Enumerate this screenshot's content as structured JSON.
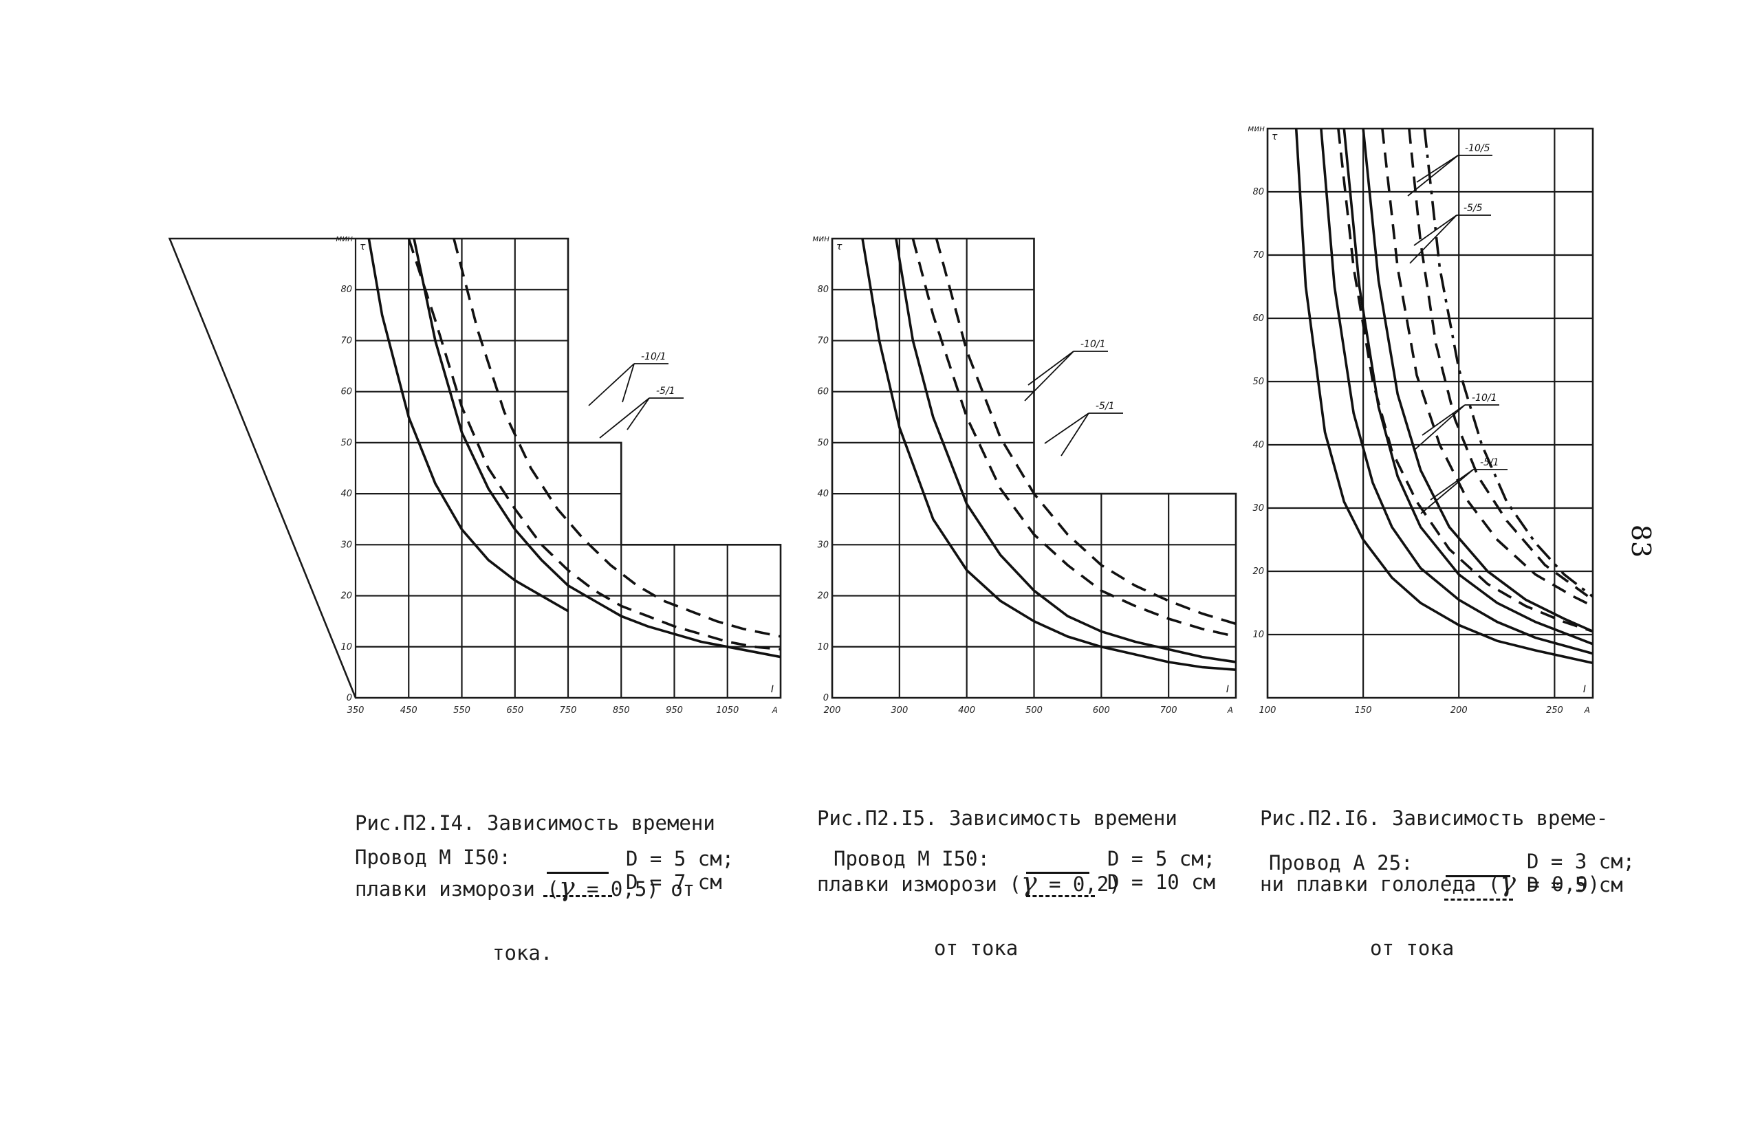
{
  "figures": [
    {
      "caption": [
        "Рис.П2.I4. Зависимость времени",
        "плавки изморози (",
        " = 0,5) от",
        "тока."
      ],
      "gamma_symbol": "γ",
      "wire_label": "Провод М I50:",
      "legend": [
        {
          "style": "solid",
          "label": "D = 5 см;"
        },
        {
          "style": "dashed",
          "label": "D = 7 см"
        }
      ]
    },
    {
      "caption": [
        "Рис.П2.I5. Зависимость времени",
        "плавки изморози (",
        " = 0,2)",
        "от тока"
      ],
      "gamma_symbol": "γ",
      "wire_label": "Провод М I50:",
      "legend": [
        {
          "style": "solid",
          "label": "D = 5 см;"
        },
        {
          "style": "dashed",
          "label": "D = 10 см"
        }
      ]
    },
    {
      "caption": [
        "Рис.П2.I6. Зависимость време-",
        "ни плавки гололеда (",
        " = 0,9)",
        "от тока"
      ],
      "gamma_symbol": "γ",
      "wire_label": "Провод А 25:",
      "legend": [
        {
          "style": "solid",
          "label": "D = 3 см;"
        },
        {
          "style": "dashed",
          "label": "D = 5 см"
        }
      ]
    }
  ],
  "page_number": "83",
  "chart_data": [
    {
      "type": "line",
      "xlabel": "I",
      "x_unit": "A",
      "ylabel": "τ",
      "y_unit": "мин",
      "x_ticks": [
        "350",
        "450",
        "550",
        "650",
        "750",
        "850",
        "950",
        "1050"
      ],
      "y_ticks": [
        "0",
        "10",
        "20",
        "30",
        "40",
        "50",
        "60",
        "70",
        "80"
      ],
      "xlim": [
        350,
        1150
      ],
      "ylim": [
        0,
        90
      ],
      "grid": true,
      "series": [
        {
          "style": "solid",
          "x": [
            375,
            400,
            450,
            500,
            550,
            600,
            650,
            700,
            750
          ],
          "y": [
            90,
            75,
            55,
            42,
            33,
            27,
            23,
            20,
            17
          ]
        },
        {
          "style": "solid",
          "x": [
            460,
            500,
            550,
            600,
            650,
            700,
            750,
            800,
            850,
            900,
            950,
            1000,
            1050,
            1100,
            1150
          ],
          "y": [
            90,
            70,
            52,
            41,
            33,
            27,
            22,
            19,
            16,
            14,
            12.5,
            11,
            10,
            9,
            8
          ]
        },
        {
          "style": "dashed",
          "x": [
            450,
            500,
            550,
            600,
            650,
            700,
            750,
            800,
            850,
            900,
            950,
            1000,
            1050,
            1100,
            1150
          ],
          "y": [
            90,
            74,
            57,
            45,
            37,
            30,
            25,
            21,
            18,
            16,
            14,
            12.5,
            11,
            10,
            9.5
          ]
        },
        {
          "style": "dashed",
          "x": [
            535,
            580,
            630,
            680,
            730,
            780,
            830,
            880,
            930,
            980,
            1030,
            1080,
            1150
          ],
          "y": [
            90,
            72,
            56,
            45,
            37,
            31,
            26,
            22,
            19,
            17,
            15,
            13.5,
            12
          ]
        }
      ],
      "annotations": [
        {
          "label": "-10/1",
          "target_series": [
            1,
            2
          ]
        },
        {
          "label": "-5/1",
          "target_series": [
            0,
            2
          ]
        }
      ]
    },
    {
      "type": "line",
      "xlabel": "I",
      "x_unit": "A",
      "ylabel": "τ",
      "y_unit": "мин",
      "x_ticks": [
        "200",
        "300",
        "400",
        "500",
        "600",
        "700"
      ],
      "y_ticks": [
        "0",
        "10",
        "20",
        "30",
        "40",
        "50",
        "60",
        "70",
        "80"
      ],
      "xlim": [
        200,
        800
      ],
      "ylim": [
        0,
        90
      ],
      "grid": true,
      "series": [
        {
          "style": "solid",
          "x": [
            245,
            270,
            300,
            350,
            400,
            450,
            500,
            550,
            600,
            650,
            700,
            750,
            800
          ],
          "y": [
            90,
            70,
            53,
            35,
            25,
            19,
            15,
            12,
            10,
            8.5,
            7,
            6,
            5.5
          ]
        },
        {
          "style": "solid",
          "x": [
            295,
            320,
            350,
            400,
            450,
            500,
            550,
            600,
            650,
            700,
            750,
            800
          ],
          "y": [
            90,
            70,
            55,
            38,
            28,
            21,
            16,
            13,
            11,
            9.5,
            8,
            7
          ]
        },
        {
          "style": "dashed",
          "x": [
            320,
            350,
            400,
            450,
            500,
            550,
            600,
            650,
            700,
            750,
            800
          ],
          "y": [
            90,
            75,
            55,
            41,
            32,
            26,
            21,
            18,
            15.5,
            13.5,
            12
          ]
        },
        {
          "style": "dashed",
          "x": [
            355,
            400,
            450,
            500,
            550,
            600,
            650,
            700,
            750,
            800
          ],
          "y": [
            90,
            68,
            51,
            40,
            32,
            26,
            22,
            19,
            16.5,
            14.5
          ]
        }
      ],
      "annotations": [
        {
          "label": "-10/1",
          "target_series": [
            1,
            2
          ]
        },
        {
          "label": "-5/1",
          "target_series": [
            0,
            3
          ]
        }
      ]
    },
    {
      "type": "line",
      "xlabel": "I",
      "x_unit": "A",
      "ylabel": "τ",
      "y_unit": "мин",
      "x_ticks": [
        "100",
        "150",
        "200",
        "250"
      ],
      "y_ticks": [
        "10",
        "20",
        "30",
        "40",
        "50",
        "60",
        "70",
        "80"
      ],
      "xlim": [
        100,
        270
      ],
      "ylim": [
        0,
        90
      ],
      "grid": true,
      "series": [
        {
          "style": "solid",
          "x": [
            115,
            120,
            130,
            140,
            150,
            165,
            180,
            200,
            220,
            240,
            270
          ],
          "y": [
            90,
            65,
            42,
            31,
            25,
            19,
            15,
            11.5,
            9,
            7.5,
            5.5
          ]
        },
        {
          "style": "solid",
          "x": [
            128,
            135,
            145,
            155,
            165,
            180,
            200,
            220,
            240,
            270
          ],
          "y": [
            90,
            65,
            45,
            34,
            27,
            20.5,
            15.5,
            12,
            9.5,
            7
          ]
        },
        {
          "style": "solid",
          "x": [
            140,
            148,
            158,
            168,
            180,
            200,
            220,
            240,
            270
          ],
          "y": [
            90,
            65,
            46,
            35,
            27,
            19.5,
            15,
            12,
            8.5
          ]
        },
        {
          "style": "solid",
          "x": [
            150,
            158,
            168,
            180,
            195,
            215,
            235,
            255,
            270
          ],
          "y": [
            90,
            66,
            48,
            36,
            27,
            20,
            15.5,
            12.5,
            10.5
          ]
        },
        {
          "style": "dashed",
          "x": [
            137,
            145,
            155,
            165,
            178,
            195,
            215,
            235,
            255,
            270
          ],
          "y": [
            90,
            68,
            50,
            39,
            31,
            23.5,
            18,
            14.5,
            12,
            10.5
          ]
        },
        {
          "style": "dashed",
          "x": [
            160,
            168,
            178,
            190,
            205,
            220,
            240,
            260,
            270
          ],
          "y": [
            90,
            68,
            51,
            40,
            31,
            25,
            19.5,
            16,
            14.5
          ]
        },
        {
          "style": "dashed",
          "x": [
            174,
            180,
            188,
            198,
            210,
            225,
            245,
            270
          ],
          "y": [
            90,
            72,
            56,
            44,
            35,
            28,
            21,
            15.5
          ]
        },
        {
          "style": "dashdot",
          "x": [
            182,
            190,
            200,
            212,
            225,
            240,
            255,
            270
          ],
          "y": [
            90,
            68,
            52,
            40,
            31,
            24.5,
            19.5,
            16
          ]
        }
      ],
      "annotations": [
        {
          "label": "-10/5",
          "target_series": [
            5,
            6
          ]
        },
        {
          "label": "-5/5",
          "target_series": [
            4,
            5
          ]
        },
        {
          "label": "-10/1",
          "target_series": [
            2,
            3
          ]
        },
        {
          "label": "-5/1",
          "target_series": [
            1,
            2
          ]
        }
      ]
    }
  ]
}
